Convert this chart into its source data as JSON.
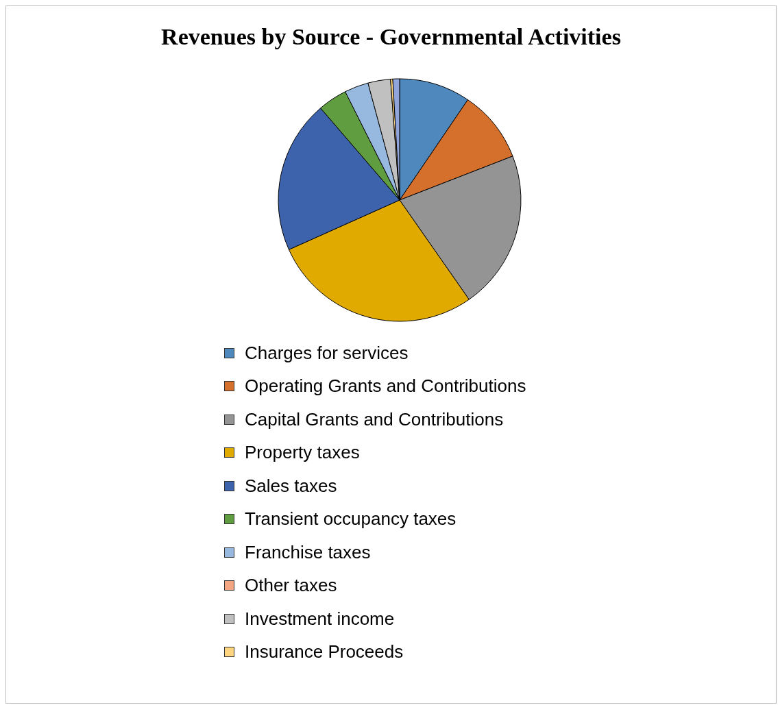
{
  "chart_data": {
    "type": "pie",
    "title": "Revenues by Source - Governmental Activities",
    "categories": [
      "Charges for services",
      "Operating Grants and Contributions",
      "Capital Grants and Contributions",
      "Property taxes",
      "Sales taxes",
      "Transient occupancy taxes",
      "Franchise taxes",
      "Other taxes",
      "Investment income",
      "Insurance Proceeds",
      null
    ],
    "values": [
      9.5,
      9.6,
      21.2,
      28.0,
      20.4,
      3.9,
      3.2,
      null,
      3.0,
      0.3,
      0.9
    ],
    "colors": [
      "#4f88bc",
      "#d4702c",
      "#949494",
      "#e0aa00",
      "#3c63ac",
      "#5f9d40",
      "#97b9e0",
      "#f4a582",
      "#c0c0c0",
      "#ffd580",
      "#8fa5dc"
    ],
    "legend": "bottom"
  }
}
